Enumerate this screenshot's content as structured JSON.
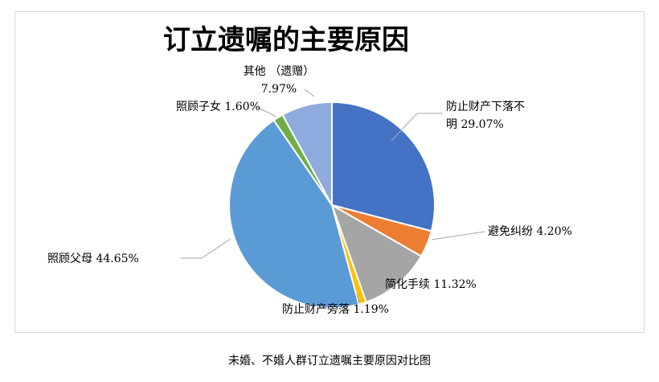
{
  "chart_data": {
    "type": "pie",
    "title": "订立遗嘱的主要原因",
    "slices": [
      {
        "label_lines": [
          "防止财产下落不",
          "明 29.07%"
        ],
        "value": 29.07,
        "color": "#4472c4"
      },
      {
        "label_lines": [
          "避免纠纷 4.20%"
        ],
        "value": 4.2,
        "color": "#ed7d31"
      },
      {
        "label_lines": [
          "简化手续 11.32%"
        ],
        "value": 11.32,
        "color": "#a5a5a5"
      },
      {
        "label_lines": [
          "防止财产旁落 1.19%"
        ],
        "value": 1.19,
        "color": "#ffc000"
      },
      {
        "label_lines": [
          "照顾父母 44.65%"
        ],
        "value": 44.65,
        "color": "#5b9bd5"
      },
      {
        "label_lines": [
          "照顾子女 1.60%"
        ],
        "value": 1.6,
        "color": "#70ad47"
      },
      {
        "label_lines": [
          "其他 （遗赠）",
          "7.97%"
        ],
        "value": 7.97,
        "color": "#8faadc"
      }
    ]
  },
  "caption": "未婚、不婚人群订立遗嘱主要原因对比图"
}
